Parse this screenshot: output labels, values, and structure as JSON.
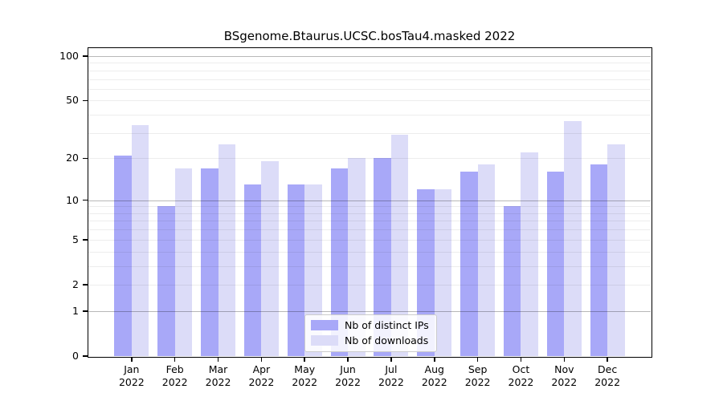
{
  "chart_data": {
    "type": "bar",
    "title": "BSgenome.Btaurus.UCSC.bosTau4.masked 2022",
    "y_scale": "log1p",
    "categories": [
      "Jan",
      "Feb",
      "Mar",
      "Apr",
      "May",
      "Jun",
      "Jul",
      "Aug",
      "Sep",
      "Oct",
      "Nov",
      "Dec"
    ],
    "year_label": "2022",
    "series": [
      {
        "name": "Nb of distinct IPs",
        "color": "#a8a8f8",
        "values": [
          21,
          9,
          17,
          13,
          13,
          17,
          20,
          12,
          16,
          9,
          16,
          18
        ]
      },
      {
        "name": "Nb of downloads",
        "color": "#dcdcf8",
        "values": [
          34,
          17,
          25,
          19,
          13,
          20,
          29,
          12,
          18,
          22,
          36,
          25
        ]
      }
    ],
    "y_ticks": [
      0,
      1,
      2,
      5,
      10,
      20,
      50,
      100
    ],
    "major_gridlines": [
      1,
      10,
      100
    ],
    "minor_gridlines": [
      2,
      3,
      4,
      5,
      6,
      7,
      8,
      9,
      20,
      30,
      40,
      50,
      60,
      70,
      80,
      90
    ],
    "ylim": [
      0,
      115
    ],
    "grid": "on",
    "legend_position": "bottom-center",
    "xlabel": "",
    "ylabel": ""
  }
}
